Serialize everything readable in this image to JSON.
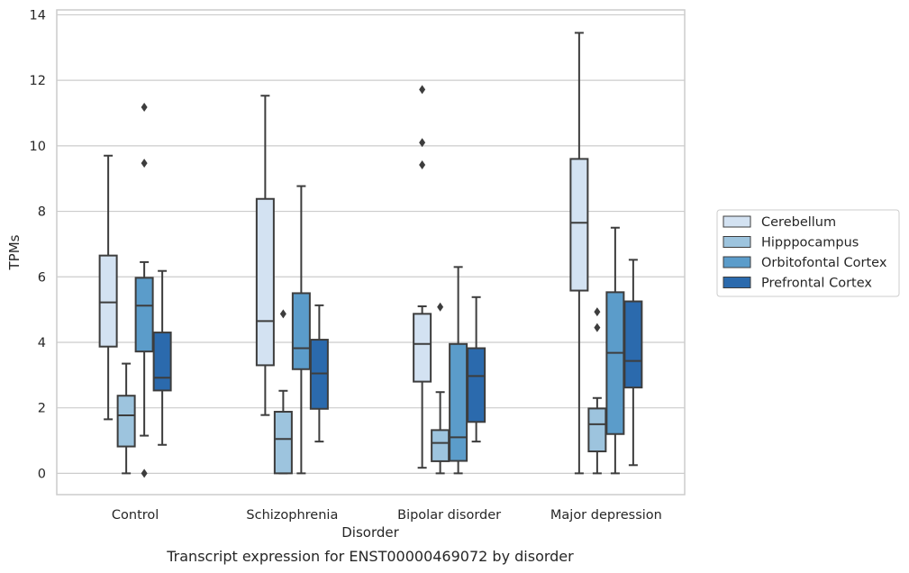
{
  "chart_data": {
    "type": "box",
    "caption": "Transcript expression for ENST00000469072 by disorder",
    "xlabel": "Disorder",
    "ylabel": "TPMs",
    "ylim": [
      -0.65,
      14.15
    ],
    "yticks": [
      0,
      2,
      4,
      6,
      8,
      10,
      12,
      14
    ],
    "grid": "horizontal",
    "legend_placement": "right",
    "categories": [
      "Control",
      "Schizophrenia",
      "Bipolar disorder",
      "Major depression"
    ],
    "series": [
      {
        "name": "Cerebellum",
        "color": "#d3e2f2",
        "boxes": [
          {
            "whislo": 1.65,
            "q1": 3.87,
            "med": 5.22,
            "q3": 6.65,
            "whishi": 9.7,
            "fliers": []
          },
          {
            "whislo": 1.78,
            "q1": 3.3,
            "med": 4.65,
            "q3": 8.38,
            "whishi": 11.53,
            "fliers": []
          },
          {
            "whislo": 0.17,
            "q1": 2.8,
            "med": 3.95,
            "q3": 4.87,
            "whishi": 5.1,
            "fliers": [
              9.42,
              10.1,
              11.72
            ]
          },
          {
            "whislo": 0.0,
            "q1": 5.58,
            "med": 7.65,
            "q3": 9.6,
            "whishi": 13.45,
            "fliers": []
          }
        ]
      },
      {
        "name": "Hipppocampus",
        "color": "#9dc4de",
        "boxes": [
          {
            "whislo": 0.0,
            "q1": 0.82,
            "med": 1.77,
            "q3": 2.37,
            "whishi": 3.35,
            "fliers": []
          },
          {
            "whislo": 0.0,
            "q1": 0.0,
            "med": 1.05,
            "q3": 1.88,
            "whishi": 2.52,
            "fliers": [
              4.87
            ]
          },
          {
            "whislo": 0.0,
            "q1": 0.37,
            "med": 0.93,
            "q3": 1.32,
            "whishi": 2.48,
            "fliers": [
              5.08
            ]
          },
          {
            "whislo": 0.0,
            "q1": 0.67,
            "med": 1.5,
            "q3": 1.98,
            "whishi": 2.3,
            "fliers": [
              4.45,
              4.93
            ]
          }
        ]
      },
      {
        "name": "Orbitofontal Cortex",
        "color": "#5b9cca",
        "boxes": [
          {
            "whislo": 1.15,
            "q1": 3.72,
            "med": 5.12,
            "q3": 5.97,
            "whishi": 6.45,
            "fliers": [
              0.0,
              9.47,
              11.18
            ]
          },
          {
            "whislo": 0.0,
            "q1": 3.18,
            "med": 3.82,
            "q3": 5.5,
            "whishi": 8.77,
            "fliers": []
          },
          {
            "whislo": 0.0,
            "q1": 0.38,
            "med": 1.1,
            "q3": 3.95,
            "whishi": 6.3,
            "fliers": []
          },
          {
            "whislo": 0.0,
            "q1": 1.2,
            "med": 3.68,
            "q3": 5.53,
            "whishi": 7.5,
            "fliers": []
          }
        ]
      },
      {
        "name": "Prefrontal Cortex",
        "color": "#2b6aad",
        "boxes": [
          {
            "whislo": 0.87,
            "q1": 2.53,
            "med": 2.92,
            "q3": 4.3,
            "whishi": 6.18,
            "fliers": []
          },
          {
            "whislo": 0.97,
            "q1": 1.97,
            "med": 3.05,
            "q3": 4.08,
            "whishi": 5.13,
            "fliers": []
          },
          {
            "whislo": 0.97,
            "q1": 1.57,
            "med": 2.97,
            "q3": 3.82,
            "whishi": 5.38,
            "fliers": []
          },
          {
            "whislo": 0.25,
            "q1": 2.62,
            "med": 3.43,
            "q3": 5.25,
            "whishi": 6.52,
            "fliers": []
          }
        ]
      }
    ]
  }
}
